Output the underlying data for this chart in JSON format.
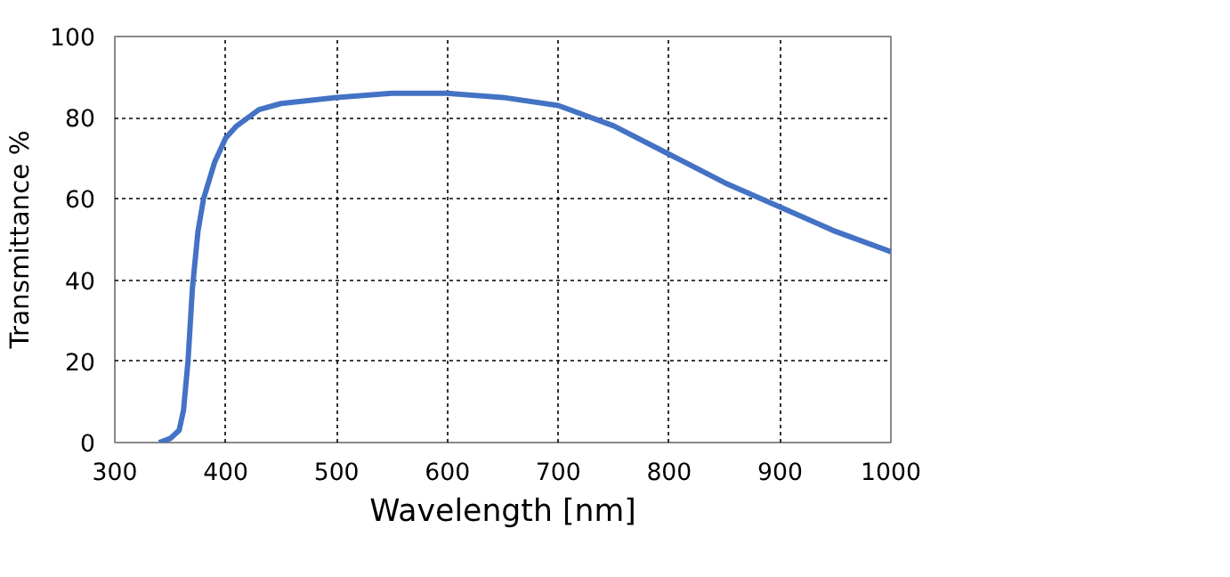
{
  "chart_data": {
    "type": "line",
    "xlabel": "Wavelength [nm]",
    "ylabel": "Transmittance %",
    "x": [
      340,
      350,
      358,
      362,
      366,
      370,
      375,
      380,
      390,
      400,
      410,
      430,
      450,
      500,
      550,
      600,
      650,
      700,
      750,
      800,
      850,
      900,
      950,
      1000
    ],
    "series": [
      {
        "color": "#4472c4",
        "values": [
          0,
          1,
          3,
          8,
          20,
          38,
          52,
          60,
          69,
          75,
          78,
          82,
          83.5,
          85,
          86,
          86,
          85,
          83,
          78,
          71,
          64,
          58,
          52,
          47
        ]
      }
    ],
    "xlim": [
      300,
      1000
    ],
    "ylim": [
      0,
      100
    ],
    "xticks": [
      300,
      400,
      500,
      600,
      700,
      800,
      900,
      1000
    ],
    "yticks": [
      0,
      20,
      40,
      60,
      80,
      100
    ],
    "grid": true,
    "line_style": "solid",
    "marker": "none"
  }
}
